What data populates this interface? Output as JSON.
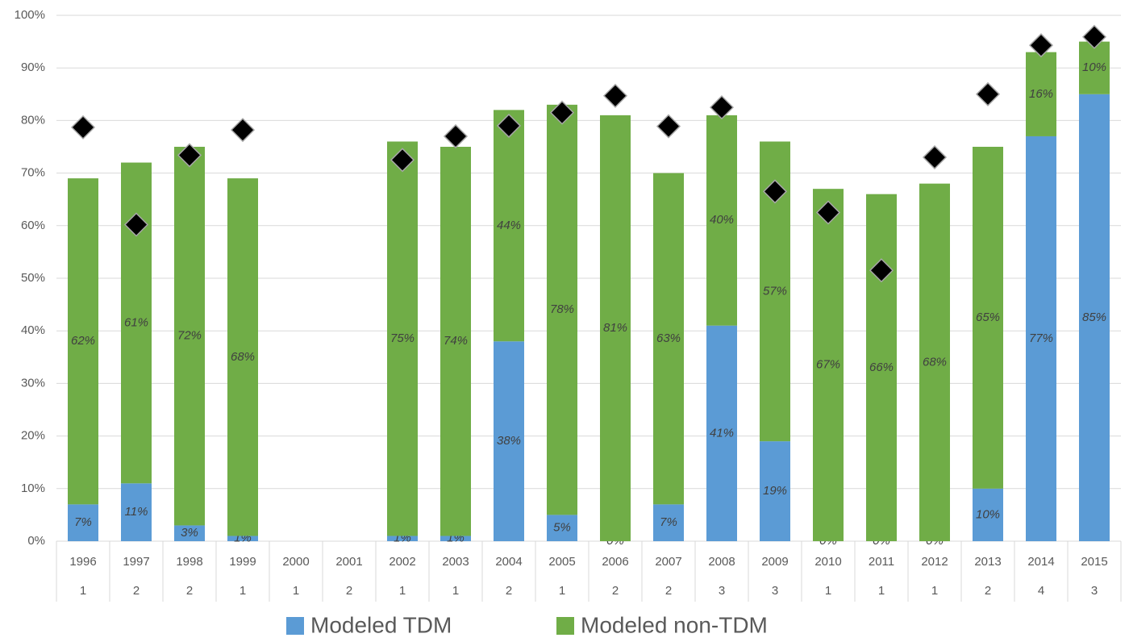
{
  "chart_data": {
    "type": "stacked-bar",
    "categories": [
      "1996",
      "1997",
      "1998",
      "1999",
      "2000",
      "2001",
      "2002",
      "2003",
      "2004",
      "2005",
      "2006",
      "2007",
      "2008",
      "2009",
      "2010",
      "2011",
      "2012",
      "2013",
      "2014",
      "2015"
    ],
    "category_counts": [
      "1",
      "2",
      "2",
      "1",
      "1",
      "2",
      "1",
      "1",
      "2",
      "1",
      "2",
      "2",
      "3",
      "3",
      "1",
      "1",
      "1",
      "2",
      "4",
      "3"
    ],
    "series": [
      {
        "name": "Modeled TDM",
        "color": "#5b9bd5",
        "values": [
          7,
          11,
          3,
          1,
          null,
          null,
          1,
          1,
          38,
          5,
          0,
          7,
          41,
          19,
          0,
          0,
          0,
          10,
          77,
          85
        ],
        "value_labels": [
          "7%",
          "11%",
          "3%",
          "1%",
          null,
          null,
          "1%",
          "1%",
          "38%",
          "5%",
          "0%",
          "7%",
          "41%",
          "19%",
          "0%",
          "0%",
          "0%",
          "10%",
          "77%",
          "85%"
        ]
      },
      {
        "name": "Modeled non-TDM",
        "color": "#70ad47",
        "values": [
          62,
          61,
          72,
          68,
          null,
          null,
          75,
          74,
          44,
          78,
          81,
          63,
          40,
          57,
          67,
          66,
          68,
          65,
          16,
          10
        ],
        "value_labels": [
          "62%",
          "61%",
          "72%",
          "68%",
          null,
          null,
          "75%",
          "74%",
          "44%",
          "78%",
          "81%",
          "63%",
          "40%",
          "57%",
          "67%",
          "66%",
          "68%",
          "65%",
          "16%",
          "10%"
        ]
      }
    ],
    "markers": {
      "color": "#000000",
      "values": [
        78.7,
        60.2,
        73.4,
        78.2,
        null,
        null,
        72.5,
        77,
        79,
        81.5,
        84.7,
        78.9,
        82.5,
        66.5,
        62.5,
        51.5,
        73,
        85,
        94.3,
        95.9
      ]
    },
    "ylim": [
      0,
      100
    ],
    "yticks": [
      {
        "value": 0,
        "label": "0%"
      },
      {
        "value": 10,
        "label": "10%"
      },
      {
        "value": 20,
        "label": "20%"
      },
      {
        "value": 30,
        "label": "30%"
      },
      {
        "value": 40,
        "label": "40%"
      },
      {
        "value": 50,
        "label": "50%"
      },
      {
        "value": 60,
        "label": "60%"
      },
      {
        "value": 70,
        "label": "70%"
      },
      {
        "value": 80,
        "label": "80%"
      },
      {
        "value": 90,
        "label": "90%"
      },
      {
        "value": 100,
        "label": "100%"
      }
    ],
    "grid": true,
    "legend": "bottom"
  }
}
